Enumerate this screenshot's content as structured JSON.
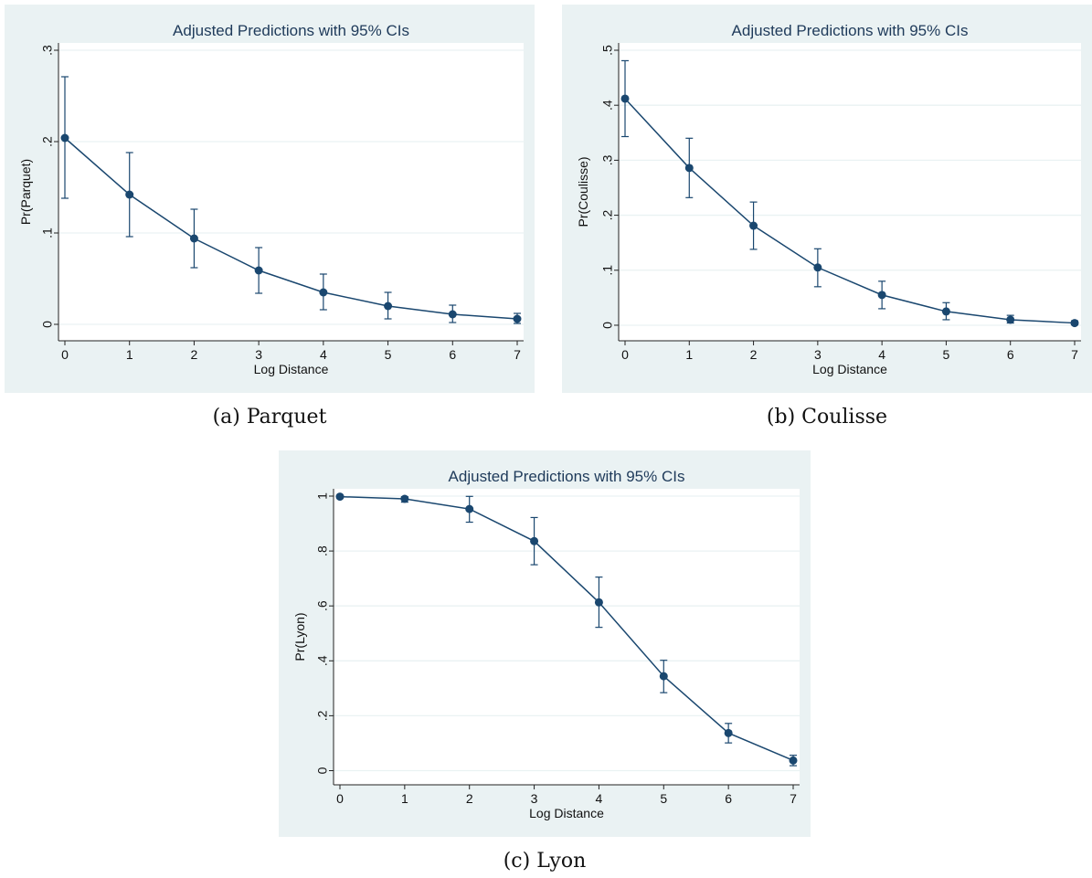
{
  "chart_data": [
    {
      "type": "line",
      "title": "Adjusted Predictions with 95% CIs",
      "xlabel": "Log Distance",
      "ylabel": "Pr(Parquet)",
      "caption": "(a) Parquet",
      "x": [
        0,
        1,
        2,
        3,
        4,
        5,
        6,
        7
      ],
      "xticks": [
        "0",
        "1",
        "2",
        "3",
        "4",
        "5",
        "6",
        "7"
      ],
      "xlim": [
        0,
        7
      ],
      "ylim": [
        -0.01,
        0.3
      ],
      "yticks": [
        0,
        0.1,
        0.2,
        0.3
      ],
      "yticklabels": [
        "0",
        ".1",
        ".2",
        ".3"
      ],
      "grid": true,
      "series": [
        {
          "values": [
            0.204,
            0.142,
            0.094,
            0.059,
            0.035,
            0.02,
            0.011,
            0.006
          ],
          "ci_low": [
            0.138,
            0.096,
            0.062,
            0.034,
            0.016,
            0.006,
            0.002,
            0.001
          ],
          "ci_high": [
            0.271,
            0.188,
            0.126,
            0.084,
            0.055,
            0.035,
            0.021,
            0.012
          ]
        }
      ],
      "colors": {
        "line": "#1a476f",
        "background": "#eaf2f3",
        "plot": "#ffffff",
        "grid": "#eaf2f3"
      }
    },
    {
      "type": "line",
      "title": "Adjusted Predictions with 95% CIs",
      "xlabel": "Log Distance",
      "ylabel": "Pr(Coulisse)",
      "caption": "(b) Coulisse",
      "x": [
        0,
        1,
        2,
        3,
        4,
        5,
        6,
        7
      ],
      "xticks": [
        "0",
        "1",
        "2",
        "3",
        "4",
        "5",
        "6",
        "7"
      ],
      "xlim": [
        0,
        7
      ],
      "ylim": [
        -0.015,
        0.5
      ],
      "yticks": [
        0,
        0.1,
        0.2,
        0.3,
        0.4,
        0.5
      ],
      "yticklabels": [
        "0",
        ".1",
        ".2",
        ".3",
        ".4",
        ".5"
      ],
      "grid": true,
      "series": [
        {
          "values": [
            0.412,
            0.286,
            0.181,
            0.105,
            0.055,
            0.025,
            0.01,
            0.004
          ],
          "ci_low": [
            0.343,
            0.232,
            0.138,
            0.07,
            0.03,
            0.01,
            0.004,
            0.001
          ],
          "ci_high": [
            0.481,
            0.34,
            0.224,
            0.139,
            0.08,
            0.041,
            0.018,
            0.008
          ]
        }
      ],
      "colors": {
        "line": "#1a476f",
        "background": "#eaf2f3",
        "plot": "#ffffff",
        "grid": "#eaf2f3"
      }
    },
    {
      "type": "line",
      "title": "Adjusted Predictions with 95% CIs",
      "xlabel": "Log Distance",
      "ylabel": "Pr(Lyon)",
      "caption": "(c) Lyon",
      "x": [
        0,
        1,
        2,
        3,
        4,
        5,
        6,
        7
      ],
      "xticks": [
        "0",
        "1",
        "2",
        "3",
        "4",
        "5",
        "6",
        "7"
      ],
      "xlim": [
        0,
        7
      ],
      "ylim": [
        -0.025,
        1.0
      ],
      "yticks": [
        0,
        0.2,
        0.4,
        0.6,
        0.8,
        1.0
      ],
      "yticklabels": [
        "0",
        ".2",
        ".4",
        ".6",
        ".8",
        "1"
      ],
      "grid": true,
      "series": [
        {
          "values": [
            0.998,
            0.99,
            0.953,
            0.836,
            0.613,
            0.344,
            0.137,
            0.037
          ],
          "ci_low": [
            0.995,
            0.978,
            0.905,
            0.75,
            0.522,
            0.284,
            0.101,
            0.018
          ],
          "ci_high": [
            1.0,
            0.998,
            0.999,
            0.922,
            0.705,
            0.402,
            0.172,
            0.056
          ]
        }
      ],
      "colors": {
        "line": "#1a476f",
        "background": "#eaf2f3",
        "plot": "#ffffff",
        "grid": "#eaf2f3"
      }
    }
  ]
}
